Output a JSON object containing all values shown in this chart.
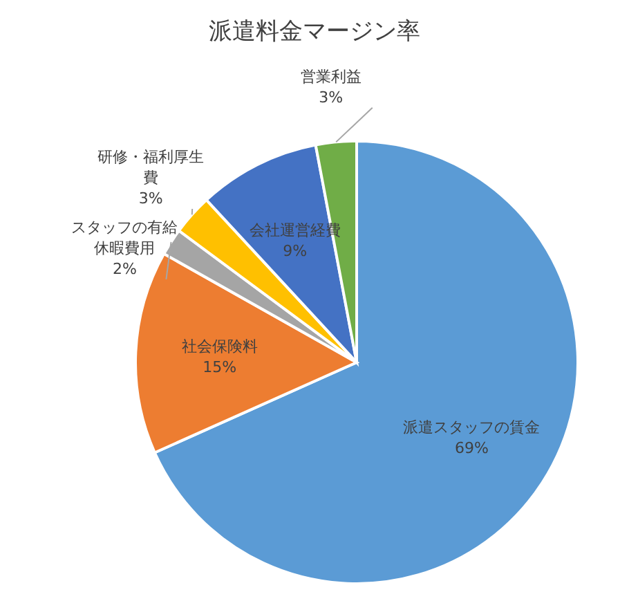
{
  "chart_data": {
    "type": "pie",
    "title": "派遣料金マージン率",
    "categories": [
      "派遣スタッフの賃金",
      "社会保険料",
      "スタッフの有給休暇費用",
      "研修・福利厚生費",
      "会社運営経費",
      "営業利益"
    ],
    "values": [
      69,
      15,
      2,
      3,
      9,
      3
    ],
    "value_labels": [
      "69%",
      "15%",
      "2%",
      "3%",
      "9%",
      "3%"
    ],
    "colors": [
      "#5b9bd5",
      "#ed7d31",
      "#a5a5a5",
      "#ffc000",
      "#4472c4",
      "#70ad47"
    ]
  }
}
